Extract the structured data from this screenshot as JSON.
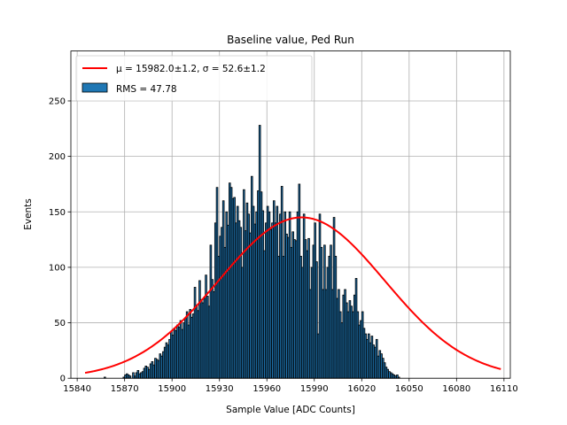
{
  "chart_data": {
    "type": "bar",
    "title": "Baseline value, Ped Run",
    "xlabel": "Sample Value [ADC Counts]",
    "ylabel": "Events",
    "xlim": [
      15836,
      16114
    ],
    "ylim": [
      0,
      295
    ],
    "x_ticks": [
      15840,
      15870,
      15900,
      15930,
      15960,
      15990,
      16020,
      16050,
      16080,
      16110
    ],
    "x_tick_labels": [
      "15840",
      "15870",
      "15900",
      "15930",
      "15960",
      "15990",
      "16020",
      "16050",
      "16080",
      "16110"
    ],
    "y_ticks": [
      0,
      50,
      100,
      150,
      200,
      250
    ],
    "y_tick_labels": [
      "0",
      "50",
      "100",
      "150",
      "200",
      "250"
    ],
    "grid": true,
    "legend_position": "top-left",
    "legend": [
      {
        "type": "line",
        "label_prefix": "μ = 15982.0±1.2, ",
        "label_suffix": "σ = 52.6±1.2",
        "color": "#ff0000"
      },
      {
        "type": "patch",
        "label": "RMS = 47.78",
        "color": "#1f77b4"
      }
    ],
    "histogram": {
      "bin_width": 1,
      "bin_start": 15845,
      "values": [
        0,
        0,
        0,
        0,
        0,
        0,
        0,
        0,
        0,
        0,
        0,
        0,
        1,
        0,
        0,
        0,
        0,
        0,
        0,
        0,
        0,
        0,
        0,
        0,
        1,
        3,
        4,
        3,
        2,
        0,
        5,
        2,
        5,
        7,
        4,
        5,
        6,
        9,
        11,
        10,
        8,
        13,
        15,
        12,
        18,
        17,
        16,
        22,
        20,
        24,
        28,
        32,
        30,
        35,
        42,
        39,
        45,
        43,
        48,
        46,
        52,
        44,
        50,
        54,
        60,
        48,
        62,
        55,
        58,
        82,
        66,
        61,
        88,
        71,
        68,
        72,
        93,
        74,
        65,
        120,
        89,
        78,
        140,
        172,
        110,
        128,
        136,
        160,
        118,
        150,
        138,
        176,
        172,
        162,
        163,
        140,
        155,
        142,
        136,
        100,
        170,
        133,
        158,
        148,
        131,
        182,
        155,
        139,
        150,
        169,
        228,
        168,
        151,
        115,
        140,
        155,
        150,
        134,
        140,
        160,
        140,
        155,
        110,
        148,
        173,
        110,
        150,
        130,
        127,
        150,
        118,
        132,
        125,
        124,
        150,
        175,
        110,
        100,
        148,
        125,
        115,
        126,
        80,
        100,
        120,
        140,
        105,
        40,
        148,
        118,
        80,
        120,
        80,
        100,
        110,
        120,
        80,
        145,
        110,
        72,
        80,
        60,
        50,
        75,
        80,
        68,
        60,
        70,
        65,
        60,
        75,
        90,
        60,
        48,
        52,
        60,
        45,
        40,
        35,
        40,
        32,
        38,
        30,
        28,
        35,
        20,
        25,
        22,
        18,
        14,
        10,
        8,
        6,
        5,
        4,
        3,
        2,
        3,
        1,
        0,
        0,
        0,
        0,
        0,
        0,
        0,
        0,
        0,
        0,
        0,
        0,
        0,
        0,
        0,
        0,
        0,
        0,
        0,
        0,
        0,
        0,
        0,
        0,
        0,
        0,
        0,
        0,
        0,
        0,
        0,
        0,
        0,
        0,
        0,
        0,
        0,
        0,
        0,
        0,
        0,
        0,
        0,
        0,
        0,
        0,
        0,
        0,
        0,
        0,
        0,
        0,
        0,
        0,
        0,
        0,
        0,
        0,
        0,
        0,
        0,
        0,
        0,
        0,
        0,
        0,
        0,
        0,
        0,
        0
      ]
    },
    "fit_curve": {
      "model": "gaussian",
      "mu": 15982.0,
      "sigma": 52.6,
      "amplitude": 145,
      "x_range": [
        15845,
        16108
      ],
      "color": "#ff0000"
    }
  }
}
